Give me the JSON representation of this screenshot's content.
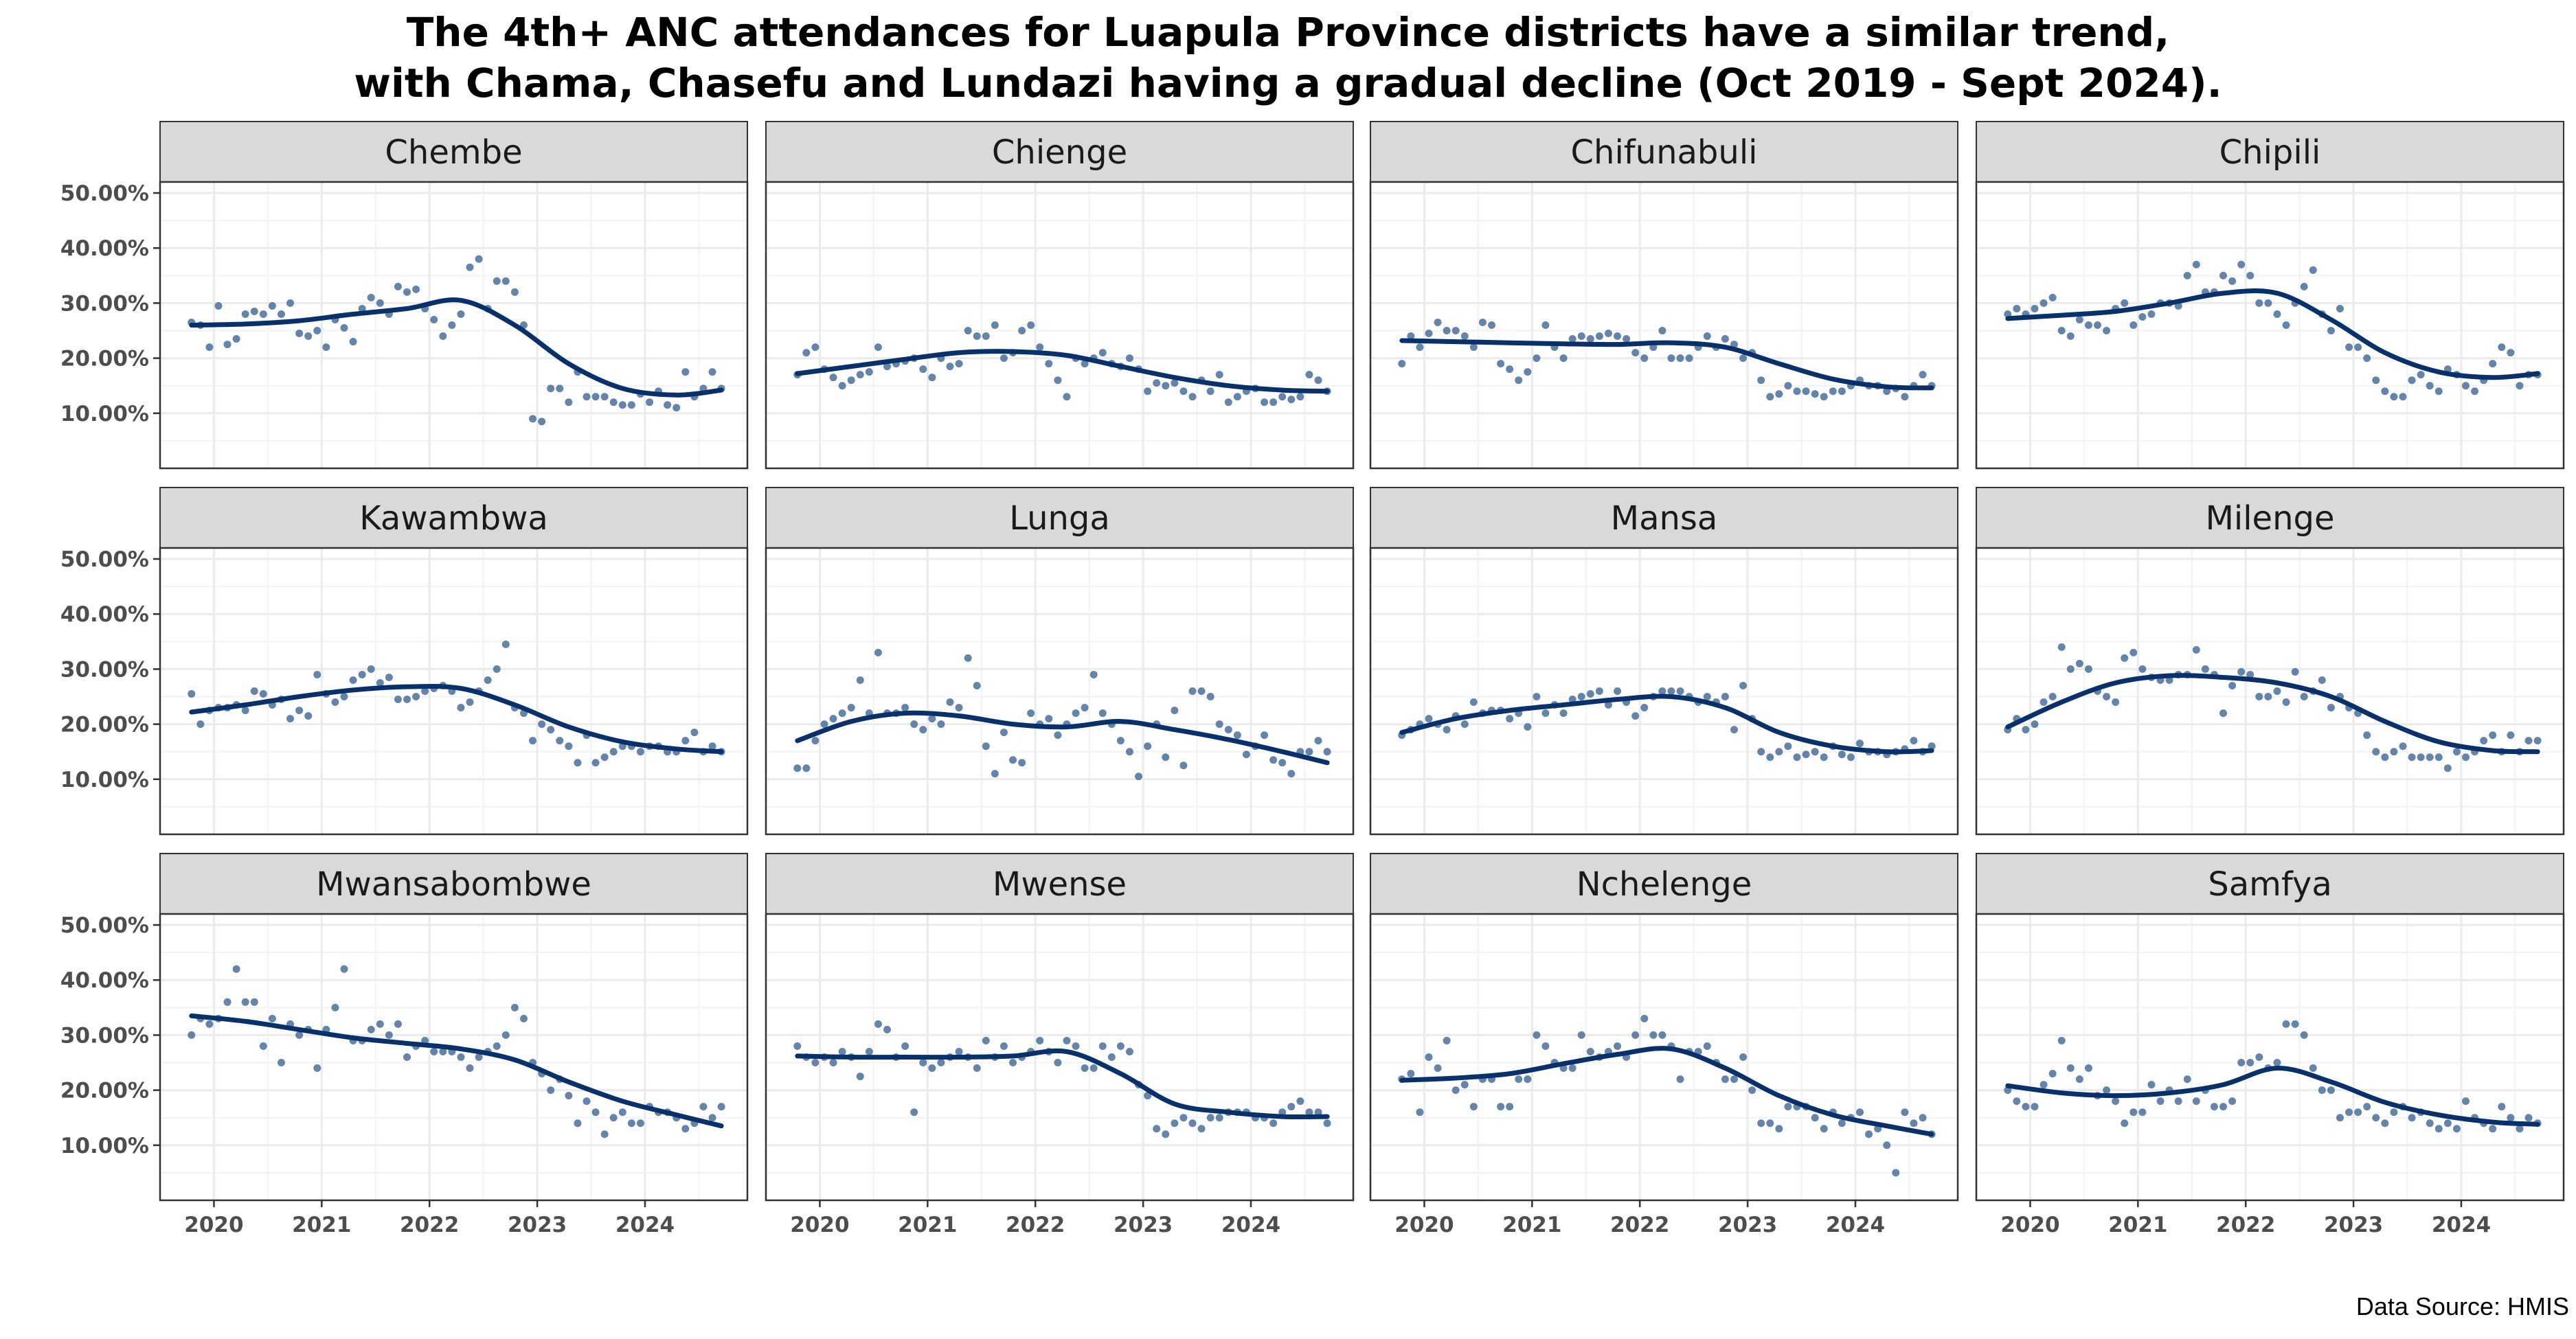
{
  "title_lines": [
    "The 4th+ ANC attendances for Luapula Province districts have a similar trend,",
    "with Chama, Chasefu and Lundazi having a gradual decline (Oct 2019 - Sept 2024)."
  ],
  "caption": "Data Source: HMIS",
  "colors": {
    "point": "#4a6f9a",
    "trend": "#08306b",
    "strip_bg": "#d9d9d9",
    "grid": "#ebebeb",
    "border": "#333333"
  },
  "chart_data": {
    "type": "scatter",
    "facet_layout": "3 rows x 4 columns, shared axes",
    "x_ticks": [
      "2020",
      "2021",
      "2022",
      "2023",
      "2024"
    ],
    "xlim": [
      2019.5,
      2024.95
    ],
    "y_ticks": [
      "10.00%",
      "20.00%",
      "30.00%",
      "40.00%",
      "50.00%"
    ],
    "ylim": [
      0,
      0.52
    ],
    "grid": true,
    "series_note": "monthly points (Oct 2019 - Sep 2024) with smoothed trend line",
    "months": [
      "2019-10",
      "2019-11",
      "2019-12",
      "2020-01",
      "2020-02",
      "2020-03",
      "2020-04",
      "2020-05",
      "2020-06",
      "2020-07",
      "2020-08",
      "2020-09",
      "2020-10",
      "2020-11",
      "2020-12",
      "2021-01",
      "2021-02",
      "2021-03",
      "2021-04",
      "2021-05",
      "2021-06",
      "2021-07",
      "2021-08",
      "2021-09",
      "2021-10",
      "2021-11",
      "2021-12",
      "2022-01",
      "2022-02",
      "2022-03",
      "2022-04",
      "2022-05",
      "2022-06",
      "2022-07",
      "2022-08",
      "2022-09",
      "2022-10",
      "2022-11",
      "2022-12",
      "2023-01",
      "2023-02",
      "2023-03",
      "2023-04",
      "2023-05",
      "2023-06",
      "2023-07",
      "2023-08",
      "2023-09",
      "2023-10",
      "2023-11",
      "2023-12",
      "2024-01",
      "2024-02",
      "2024-03",
      "2024-04",
      "2024-05",
      "2024-06",
      "2024-07",
      "2024-08",
      "2024-09"
    ],
    "trend_x": [
      "2019-10",
      "2020-04",
      "2020-10",
      "2021-04",
      "2021-10",
      "2022-04",
      "2022-10",
      "2023-04",
      "2023-10",
      "2024-04",
      "2024-09"
    ],
    "facets": [
      {
        "name": "Chembe",
        "values": [
          0.265,
          0.26,
          0.22,
          0.295,
          0.225,
          0.235,
          0.28,
          0.285,
          0.28,
          0.295,
          0.28,
          0.3,
          0.245,
          0.24,
          0.25,
          0.22,
          0.27,
          0.255,
          0.23,
          0.29,
          0.31,
          0.3,
          0.28,
          0.33,
          0.32,
          0.325,
          0.29,
          0.27,
          0.24,
          0.26,
          0.28,
          0.365,
          0.38,
          0.29,
          0.34,
          0.34,
          0.32,
          0.26,
          0.09,
          0.085,
          0.145,
          0.145,
          0.12,
          0.175,
          0.13,
          0.13,
          0.13,
          0.12,
          0.115,
          0.115,
          0.135,
          0.12,
          0.14,
          0.115,
          0.11,
          0.175,
          0.13,
          0.145,
          0.175,
          0.145
        ],
        "trend": [
          0.26,
          0.262,
          0.268,
          0.28,
          0.29,
          0.305,
          0.26,
          0.19,
          0.145,
          0.133,
          0.142
        ]
      },
      {
        "name": "Chienge",
        "values": [
          0.17,
          0.21,
          0.22,
          0.18,
          0.165,
          0.15,
          0.16,
          0.17,
          0.175,
          0.22,
          0.185,
          0.19,
          0.195,
          0.2,
          0.18,
          0.165,
          0.2,
          0.185,
          0.19,
          0.25,
          0.24,
          0.24,
          0.26,
          0.2,
          0.21,
          0.25,
          0.26,
          0.22,
          0.19,
          0.16,
          0.13,
          0.2,
          0.19,
          0.2,
          0.21,
          0.19,
          0.185,
          0.2,
          0.18,
          0.14,
          0.155,
          0.15,
          0.155,
          0.14,
          0.13,
          0.16,
          0.14,
          0.17,
          0.12,
          0.13,
          0.14,
          0.145,
          0.12,
          0.12,
          0.13,
          0.125,
          0.13,
          0.17,
          0.16,
          0.14
        ],
        "trend": [
          0.172,
          0.185,
          0.198,
          0.21,
          0.212,
          0.205,
          0.185,
          0.165,
          0.15,
          0.142,
          0.14
        ]
      },
      {
        "name": "Chifunabuli",
        "values": [
          0.19,
          0.24,
          0.22,
          0.245,
          0.265,
          0.25,
          0.25,
          0.24,
          0.22,
          0.265,
          0.26,
          0.19,
          0.18,
          0.16,
          0.175,
          0.2,
          0.26,
          0.22,
          0.2,
          0.235,
          0.24,
          0.235,
          0.24,
          0.245,
          0.24,
          0.235,
          0.21,
          0.2,
          0.22,
          0.25,
          0.2,
          0.2,
          0.2,
          0.22,
          0.24,
          0.22,
          0.235,
          0.225,
          0.2,
          0.21,
          0.16,
          0.13,
          0.135,
          0.15,
          0.14,
          0.14,
          0.135,
          0.13,
          0.14,
          0.14,
          0.15,
          0.16,
          0.15,
          0.15,
          0.14,
          0.145,
          0.13,
          0.15,
          0.17,
          0.15
        ],
        "trend": [
          0.232,
          0.23,
          0.228,
          0.226,
          0.225,
          0.228,
          0.22,
          0.19,
          0.162,
          0.148,
          0.146
        ]
      },
      {
        "name": "Chipili",
        "values": [
          0.28,
          0.29,
          0.28,
          0.29,
          0.3,
          0.31,
          0.25,
          0.24,
          0.27,
          0.26,
          0.26,
          0.25,
          0.29,
          0.3,
          0.26,
          0.275,
          0.28,
          0.3,
          0.3,
          0.295,
          0.35,
          0.37,
          0.32,
          0.32,
          0.35,
          0.34,
          0.37,
          0.35,
          0.3,
          0.3,
          0.28,
          0.26,
          0.3,
          0.33,
          0.36,
          0.28,
          0.25,
          0.29,
          0.22,
          0.22,
          0.2,
          0.16,
          0.14,
          0.13,
          0.13,
          0.16,
          0.17,
          0.15,
          0.14,
          0.18,
          0.17,
          0.15,
          0.14,
          0.16,
          0.19,
          0.22,
          0.21,
          0.15,
          0.17,
          0.17
        ],
        "trend": [
          0.272,
          0.278,
          0.285,
          0.3,
          0.318,
          0.318,
          0.27,
          0.21,
          0.175,
          0.165,
          0.172
        ]
      },
      {
        "name": "Kawambwa",
        "values": [
          0.255,
          0.2,
          0.225,
          0.23,
          0.23,
          0.235,
          0.225,
          0.26,
          0.255,
          0.235,
          0.245,
          0.21,
          0.225,
          0.215,
          0.29,
          0.255,
          0.24,
          0.25,
          0.28,
          0.29,
          0.3,
          0.275,
          0.285,
          0.245,
          0.245,
          0.25,
          0.26,
          0.265,
          0.27,
          0.26,
          0.23,
          0.24,
          0.26,
          0.28,
          0.3,
          0.345,
          0.23,
          0.22,
          0.17,
          0.2,
          0.19,
          0.17,
          0.16,
          0.13,
          0.18,
          0.13,
          0.14,
          0.15,
          0.16,
          0.16,
          0.15,
          0.16,
          0.16,
          0.15,
          0.15,
          0.17,
          0.185,
          0.15,
          0.16,
          0.15
        ],
        "trend": [
          0.222,
          0.235,
          0.25,
          0.262,
          0.268,
          0.265,
          0.235,
          0.195,
          0.168,
          0.155,
          0.15
        ]
      },
      {
        "name": "Lunga",
        "values": [
          0.12,
          0.12,
          0.17,
          0.2,
          0.21,
          0.22,
          0.23,
          0.28,
          0.22,
          0.33,
          0.22,
          0.22,
          0.23,
          0.2,
          0.19,
          0.21,
          0.2,
          0.24,
          0.23,
          0.32,
          0.27,
          0.16,
          0.11,
          0.185,
          0.135,
          0.13,
          0.22,
          0.2,
          0.21,
          0.18,
          0.2,
          0.22,
          0.23,
          0.29,
          0.22,
          0.2,
          0.17,
          0.15,
          0.105,
          0.16,
          0.2,
          0.14,
          0.225,
          0.125,
          0.26,
          0.26,
          0.25,
          0.2,
          0.19,
          0.18,
          0.145,
          0.16,
          0.18,
          0.135,
          0.13,
          0.11,
          0.15,
          0.15,
          0.17,
          0.15
        ],
        "trend": [
          0.17,
          0.205,
          0.22,
          0.215,
          0.2,
          0.195,
          0.205,
          0.19,
          0.172,
          0.15,
          0.13
        ]
      },
      {
        "name": "Mansa",
        "values": [
          0.18,
          0.19,
          0.2,
          0.21,
          0.2,
          0.19,
          0.215,
          0.2,
          0.24,
          0.22,
          0.225,
          0.225,
          0.21,
          0.22,
          0.195,
          0.25,
          0.22,
          0.235,
          0.22,
          0.245,
          0.25,
          0.255,
          0.26,
          0.235,
          0.26,
          0.24,
          0.215,
          0.23,
          0.25,
          0.26,
          0.26,
          0.26,
          0.25,
          0.24,
          0.25,
          0.24,
          0.25,
          0.19,
          0.27,
          0.21,
          0.15,
          0.14,
          0.15,
          0.16,
          0.14,
          0.145,
          0.15,
          0.14,
          0.16,
          0.145,
          0.14,
          0.165,
          0.15,
          0.15,
          0.145,
          0.15,
          0.155,
          0.17,
          0.15,
          0.16
        ],
        "trend": [
          0.185,
          0.21,
          0.225,
          0.235,
          0.245,
          0.25,
          0.23,
          0.185,
          0.16,
          0.15,
          0.152
        ]
      },
      {
        "name": "Milenge",
        "values": [
          0.19,
          0.21,
          0.19,
          0.2,
          0.24,
          0.25,
          0.34,
          0.3,
          0.31,
          0.3,
          0.26,
          0.25,
          0.24,
          0.32,
          0.33,
          0.3,
          0.285,
          0.28,
          0.28,
          0.29,
          0.29,
          0.335,
          0.3,
          0.29,
          0.22,
          0.27,
          0.295,
          0.29,
          0.25,
          0.25,
          0.26,
          0.24,
          0.295,
          0.25,
          0.26,
          0.28,
          0.23,
          0.25,
          0.23,
          0.22,
          0.18,
          0.15,
          0.14,
          0.15,
          0.16,
          0.14,
          0.14,
          0.14,
          0.14,
          0.12,
          0.15,
          0.14,
          0.15,
          0.17,
          0.18,
          0.15,
          0.18,
          0.15,
          0.17,
          0.17
        ],
        "trend": [
          0.195,
          0.24,
          0.275,
          0.288,
          0.285,
          0.275,
          0.25,
          0.205,
          0.168,
          0.152,
          0.15
        ]
      },
      {
        "name": "Mwansabombwe",
        "values": [
          0.3,
          0.33,
          0.32,
          0.33,
          0.36,
          0.42,
          0.36,
          0.36,
          0.28,
          0.33,
          0.25,
          0.32,
          0.3,
          0.31,
          0.24,
          0.31,
          0.35,
          0.42,
          0.29,
          0.29,
          0.31,
          0.32,
          0.3,
          0.32,
          0.26,
          0.28,
          0.29,
          0.27,
          0.27,
          0.27,
          0.26,
          0.24,
          0.26,
          0.27,
          0.28,
          0.3,
          0.35,
          0.33,
          0.25,
          0.23,
          0.2,
          0.22,
          0.19,
          0.14,
          0.18,
          0.16,
          0.12,
          0.15,
          0.16,
          0.14,
          0.14,
          0.17,
          0.16,
          0.16,
          0.15,
          0.13,
          0.14,
          0.17,
          0.15,
          0.17
        ],
        "trend": [
          0.335,
          0.325,
          0.31,
          0.295,
          0.285,
          0.275,
          0.255,
          0.215,
          0.18,
          0.155,
          0.135
        ]
      },
      {
        "name": "Mwense",
        "values": [
          0.28,
          0.26,
          0.25,
          0.26,
          0.25,
          0.27,
          0.26,
          0.225,
          0.27,
          0.32,
          0.31,
          0.26,
          0.28,
          0.16,
          0.25,
          0.24,
          0.25,
          0.26,
          0.27,
          0.26,
          0.24,
          0.29,
          0.26,
          0.28,
          0.25,
          0.26,
          0.27,
          0.29,
          0.27,
          0.25,
          0.29,
          0.28,
          0.24,
          0.24,
          0.28,
          0.26,
          0.28,
          0.27,
          0.21,
          0.19,
          0.13,
          0.12,
          0.14,
          0.15,
          0.14,
          0.13,
          0.15,
          0.15,
          0.16,
          0.16,
          0.16,
          0.15,
          0.15,
          0.14,
          0.16,
          0.17,
          0.18,
          0.16,
          0.16,
          0.14
        ],
        "trend": [
          0.262,
          0.26,
          0.26,
          0.26,
          0.262,
          0.27,
          0.23,
          0.175,
          0.16,
          0.152,
          0.152
        ]
      },
      {
        "name": "Nchelenge",
        "values": [
          0.22,
          0.23,
          0.16,
          0.26,
          0.24,
          0.29,
          0.2,
          0.21,
          0.17,
          0.22,
          0.22,
          0.17,
          0.17,
          0.22,
          0.22,
          0.3,
          0.28,
          0.25,
          0.24,
          0.24,
          0.3,
          0.27,
          0.26,
          0.27,
          0.28,
          0.26,
          0.3,
          0.33,
          0.3,
          0.3,
          0.28,
          0.22,
          0.27,
          0.27,
          0.28,
          0.25,
          0.22,
          0.22,
          0.26,
          0.2,
          0.14,
          0.14,
          0.13,
          0.17,
          0.17,
          0.17,
          0.15,
          0.13,
          0.16,
          0.14,
          0.15,
          0.16,
          0.12,
          0.13,
          0.1,
          0.05,
          0.16,
          0.14,
          0.15,
          0.12
        ],
        "trend": [
          0.218,
          0.222,
          0.23,
          0.248,
          0.265,
          0.275,
          0.24,
          0.19,
          0.155,
          0.135,
          0.12
        ]
      },
      {
        "name": "Samfya",
        "values": [
          0.2,
          0.18,
          0.17,
          0.17,
          0.21,
          0.23,
          0.29,
          0.24,
          0.22,
          0.24,
          0.19,
          0.2,
          0.18,
          0.14,
          0.16,
          0.16,
          0.21,
          0.18,
          0.2,
          0.18,
          0.22,
          0.18,
          0.2,
          0.17,
          0.17,
          0.18,
          0.25,
          0.25,
          0.26,
          0.24,
          0.25,
          0.32,
          0.32,
          0.3,
          0.24,
          0.2,
          0.2,
          0.15,
          0.16,
          0.16,
          0.17,
          0.15,
          0.14,
          0.16,
          0.17,
          0.15,
          0.16,
          0.14,
          0.13,
          0.14,
          0.13,
          0.18,
          0.15,
          0.14,
          0.13,
          0.17,
          0.15,
          0.13,
          0.15,
          0.14
        ],
        "trend": [
          0.208,
          0.195,
          0.19,
          0.195,
          0.21,
          0.24,
          0.215,
          0.178,
          0.155,
          0.142,
          0.138
        ]
      }
    ]
  }
}
